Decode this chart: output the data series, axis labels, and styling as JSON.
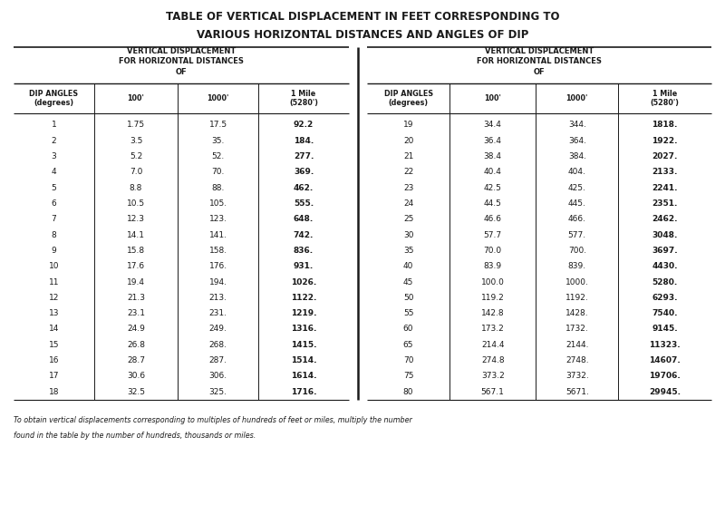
{
  "title1": "TABLE OF VERTICAL DISPLACEMENT IN FEET CORRESPONDING TO",
  "title2": "VARIOUS HORIZONTAL DISTANCES AND ANGLES OF DIP",
  "subtitle_left": "VERTICAL DISPLACEMENT\nFOR HORIZONTAL DISTANCES\nOF",
  "subtitle_right": "VERTICAL DISPLACEMENT\nFOR HORIZONTAL DISTANCES\nOF",
  "col_headers": [
    "DIP ANGLES\n(degrees)",
    "100'",
    "1000'",
    "1 Mile\n(5280')"
  ],
  "left_data": [
    [
      "1",
      "1.75",
      "17.5",
      "92.2"
    ],
    [
      "2",
      "3.5",
      "35.",
      "184."
    ],
    [
      "3",
      "5.2",
      "52.",
      "277."
    ],
    [
      "4",
      "7.0",
      "70.",
      "369."
    ],
    [
      "5",
      "8.8",
      "88.",
      "462."
    ],
    [
      "6",
      "10.5",
      "105.",
      "555."
    ],
    [
      "7",
      "12.3",
      "123.",
      "648."
    ],
    [
      "8",
      "14.1",
      "141.",
      "742."
    ],
    [
      "9",
      "15.8",
      "158.",
      "836."
    ],
    [
      "10",
      "17.6",
      "176.",
      "931."
    ],
    [
      "11",
      "19.4",
      "194.",
      "1026."
    ],
    [
      "12",
      "21.3",
      "213.",
      "1122."
    ],
    [
      "13",
      "23.1",
      "231.",
      "1219."
    ],
    [
      "14",
      "24.9",
      "249.",
      "1316."
    ],
    [
      "15",
      "26.8",
      "268.",
      "1415."
    ],
    [
      "16",
      "28.7",
      "287.",
      "1514."
    ],
    [
      "17",
      "30.6",
      "306.",
      "1614."
    ],
    [
      "18",
      "32.5",
      "325.",
      "1716."
    ]
  ],
  "right_data": [
    [
      "19",
      "34.4",
      "344.",
      "1818."
    ],
    [
      "20",
      "36.4",
      "364.",
      "1922."
    ],
    [
      "21",
      "38.4",
      "384.",
      "2027."
    ],
    [
      "22",
      "40.4",
      "404.",
      "2133."
    ],
    [
      "23",
      "42.5",
      "425.",
      "2241."
    ],
    [
      "24",
      "44.5",
      "445.",
      "2351."
    ],
    [
      "25",
      "46.6",
      "466.",
      "2462."
    ],
    [
      "30",
      "57.7",
      "577.",
      "3048."
    ],
    [
      "35",
      "70.0",
      "700.",
      "3697."
    ],
    [
      "40",
      "83.9",
      "839.",
      "4430."
    ],
    [
      "45",
      "100.0",
      "1000.",
      "5280."
    ],
    [
      "50",
      "119.2",
      "1192.",
      "6293."
    ],
    [
      "55",
      "142.8",
      "1428.",
      "7540."
    ],
    [
      "60",
      "173.2",
      "1732.",
      "9145."
    ],
    [
      "65",
      "214.4",
      "2144.",
      "11323."
    ],
    [
      "70",
      "274.8",
      "2748.",
      "14607."
    ],
    [
      "75",
      "373.2",
      "3732.",
      "19706."
    ],
    [
      "80",
      "567.1",
      "5671.",
      "29945."
    ]
  ],
  "footnote1": "To obtain vertical displacements corresponding to multiples of hundreds of feet or miles, multiply the number",
  "footnote2": "found in the table by the number of hundreds, thousands or miles.",
  "bg_color": "#ffffff",
  "text_color": "#1a1a1a",
  "line_color": "#1a1a1a",
  "figsize": [
    8.0,
    5.57
  ],
  "dpi": 100
}
